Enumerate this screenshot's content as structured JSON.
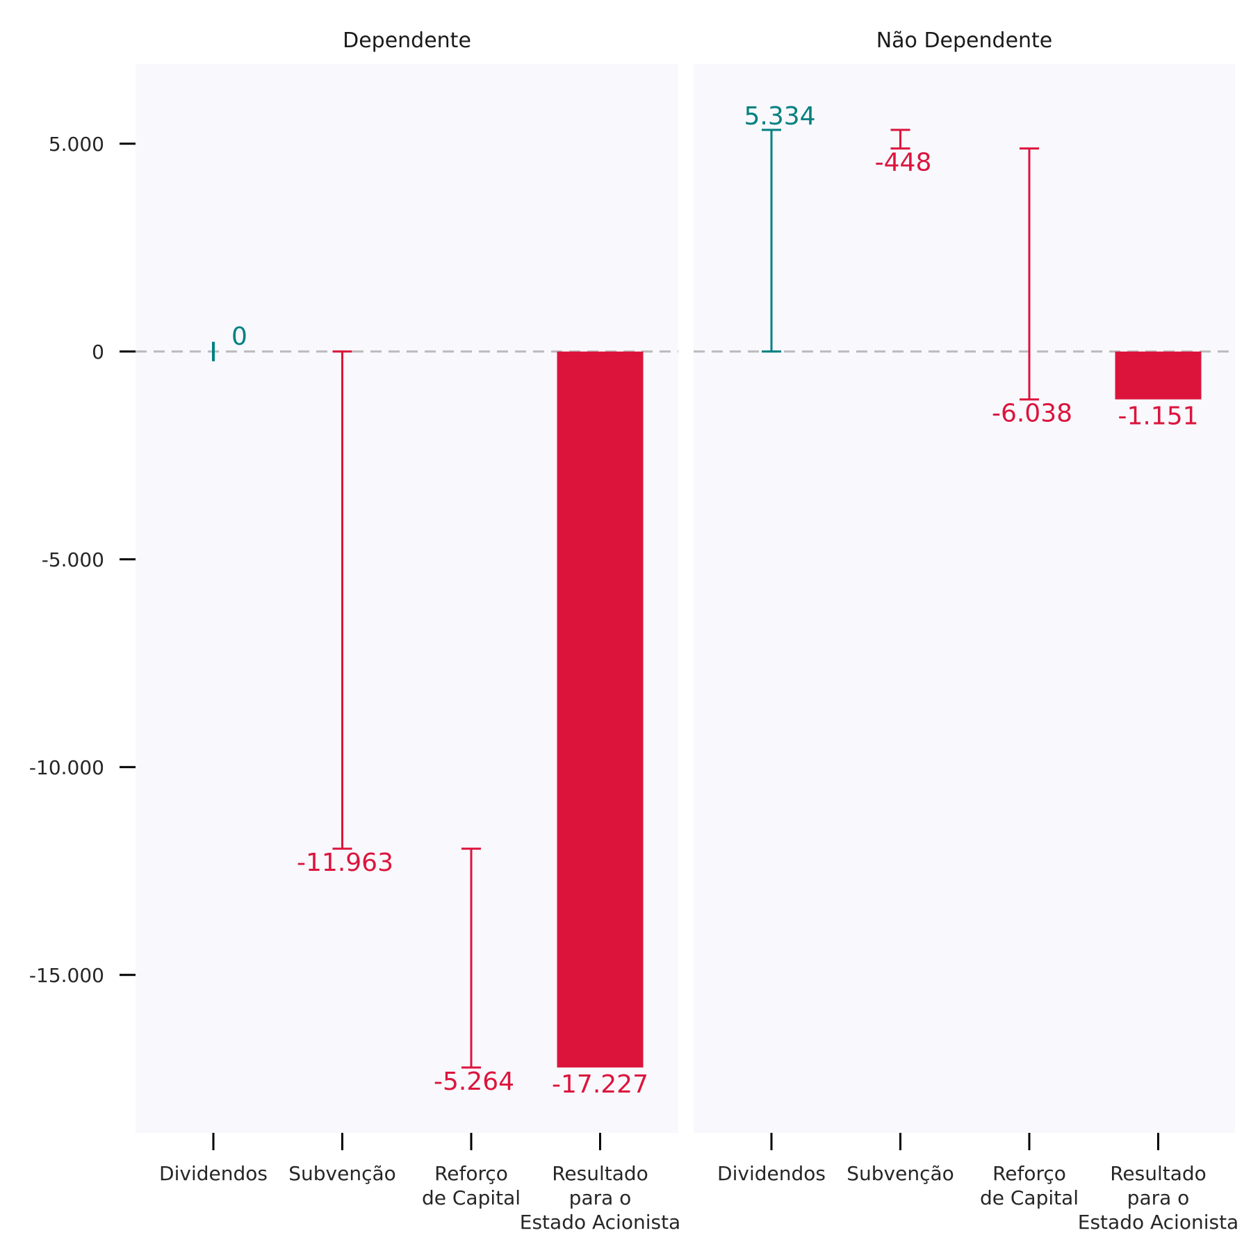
{
  "chart_data": {
    "type": "waterfall",
    "ylim": [
      -18800,
      6920
    ],
    "yticks": [
      5000,
      0,
      -5000,
      -10000,
      -15000
    ],
    "ytick_labels": [
      "5.000",
      "0",
      "-5.000",
      "-10.000",
      "-15.000"
    ],
    "grid": false,
    "zero_line": "dashed",
    "colors": {
      "positive": "#008080",
      "negative": "#DC143C",
      "panel_bg": "#F8F8FD",
      "zero_line": "#BBBBBB"
    },
    "categories": [
      [
        "Dividendos"
      ],
      [
        "Subvenção"
      ],
      [
        "Reforço",
        "de Capital"
      ],
      [
        "Resultado",
        "para o",
        "Estado Acionista"
      ]
    ],
    "panels": [
      {
        "title": "Dependente",
        "steps": [
          {
            "value": 0,
            "label": "0",
            "start": 0,
            "end": 0,
            "kind": "step"
          },
          {
            "value": -11963,
            "label": "-11.963",
            "start": 0,
            "end": -11963,
            "kind": "step"
          },
          {
            "value": -5264,
            "label": "-5.264",
            "start": -11963,
            "end": -17227,
            "kind": "step"
          },
          {
            "value": -17227,
            "label": "-17.227",
            "start": 0,
            "end": -17227,
            "kind": "total"
          }
        ]
      },
      {
        "title": "Não Dependente",
        "steps": [
          {
            "value": 5334,
            "label": "5.334",
            "start": 0,
            "end": 5334,
            "kind": "step"
          },
          {
            "value": -448,
            "label": "-448",
            "start": 5334,
            "end": 4886,
            "kind": "step"
          },
          {
            "value": -6038,
            "label": "-6.038",
            "start": 4886,
            "end": -1152,
            "kind": "step"
          },
          {
            "value": -1151,
            "label": "-1.151",
            "start": 0,
            "end": -1151,
            "kind": "total"
          }
        ]
      }
    ]
  }
}
